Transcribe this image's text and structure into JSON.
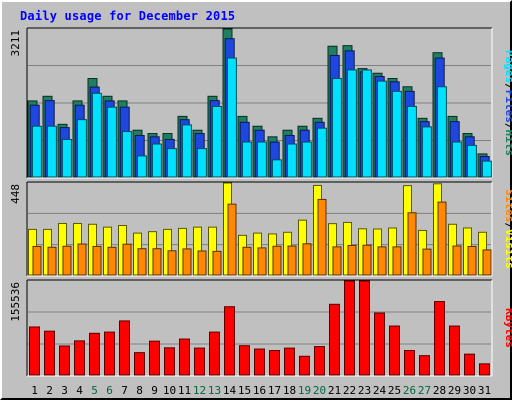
{
  "chart_data": {
    "title": "Daily usage for December 2015",
    "categories": [
      "1",
      "2",
      "3",
      "4",
      "5",
      "6",
      "7",
      "8",
      "9",
      "10",
      "11",
      "12",
      "13",
      "14",
      "15",
      "16",
      "17",
      "18",
      "19",
      "20",
      "21",
      "22",
      "23",
      "24",
      "25",
      "26",
      "27",
      "28",
      "29",
      "30",
      "31"
    ],
    "weekend_days": [
      "5",
      "6",
      "12",
      "13",
      "19",
      "20",
      "26",
      "27"
    ],
    "colors": {
      "title": "#0000ff",
      "hits": "#1e8060",
      "files": "#1e47e0",
      "pages": "#00e0ff",
      "visits": "#ffff00",
      "sites": "#ff8800",
      "kbytes": "#ff0000",
      "weekend_label": "#006840",
      "panel_bg": "#c0c0c0",
      "grid": "#808080"
    },
    "charts": [
      {
        "type": "bar",
        "panel": "hits-files-pages",
        "ymax_label": "3211",
        "ylim": [
          0,
          3211
        ],
        "legend": [
          "Pages",
          "Files",
          "Hits"
        ],
        "series": [
          {
            "name": "Hits",
            "values": [
              1651,
              1751,
              1143,
              1651,
              2137,
              1751,
              1651,
              1015,
              943,
              943,
              1315,
              1015,
              1751,
              3211,
              1315,
              1101,
              872,
              1015,
              1101,
              1273,
              2837,
              2850,
              2352,
              2251,
              2137,
              1958,
              1273,
              2697,
              1315,
              943,
              501
            ]
          },
          {
            "name": "Files",
            "values": [
              1558,
              1658,
              1072,
              1558,
              1951,
              1651,
              1515,
              901,
              872,
              815,
              1244,
              943,
              1658,
              3001,
              1187,
              1015,
              758,
              901,
              1015,
              1187,
              2637,
              2737,
              2280,
              2180,
              2065,
              1858,
              1201,
              2580,
              1201,
              872,
              444
            ]
          },
          {
            "name": "Pages",
            "values": [
              1101,
              1101,
              815,
              1244,
              1815,
              1515,
              986,
              458,
              715,
              615,
              1130,
              615,
              1530,
              2580,
              758,
              758,
              372,
              715,
              758,
              1058,
              2137,
              2323,
              2322,
              2080,
              1858,
              1530,
              1087,
              1958,
              758,
              686,
              344
            ]
          }
        ]
      },
      {
        "type": "bar",
        "panel": "visits-sites",
        "ymax_label": "448",
        "ylim": [
          0,
          448
        ],
        "legend": [
          "Sites",
          "Visits"
        ],
        "series": [
          {
            "name": "Visits",
            "values": [
              222,
              222,
              251,
              251,
              247,
              233,
              241,
              204,
              211,
              222,
              227,
              233,
              233,
              448,
              193,
              204,
              200,
              208,
              267,
              436,
              250,
              256,
              225,
              224,
              229,
              435,
              217,
              444,
              247,
              229,
              208
            ]
          },
          {
            "name": "Sites",
            "values": [
              139,
              135,
              140,
              151,
              139,
              135,
              150,
              128,
              128,
              118,
              127,
              117,
              115,
              345,
              135,
              132,
              140,
              141,
              152,
              368,
              137,
              144,
              145,
              137,
              137,
              303,
              126,
              355,
              141,
              139,
              122
            ]
          }
        ]
      },
      {
        "type": "bar",
        "panel": "kbytes",
        "ymax_label": "155536",
        "ylim": [
          0,
          155536
        ],
        "legend": [
          "KBytes"
        ],
        "series": [
          {
            "name": "KBytes",
            "values": [
              79500,
              72500,
              48000,
              56500,
              69000,
              71000,
              89500,
              37000,
              56000,
              45000,
              59500,
              44500,
              71000,
              113000,
              48500,
              43000,
              40500,
              44500,
              31000,
              47000,
              117000,
              155536,
              155536,
              102500,
              81000,
              40500,
              32000,
              121500,
              81000,
              34500,
              18500
            ]
          }
        ]
      }
    ]
  }
}
